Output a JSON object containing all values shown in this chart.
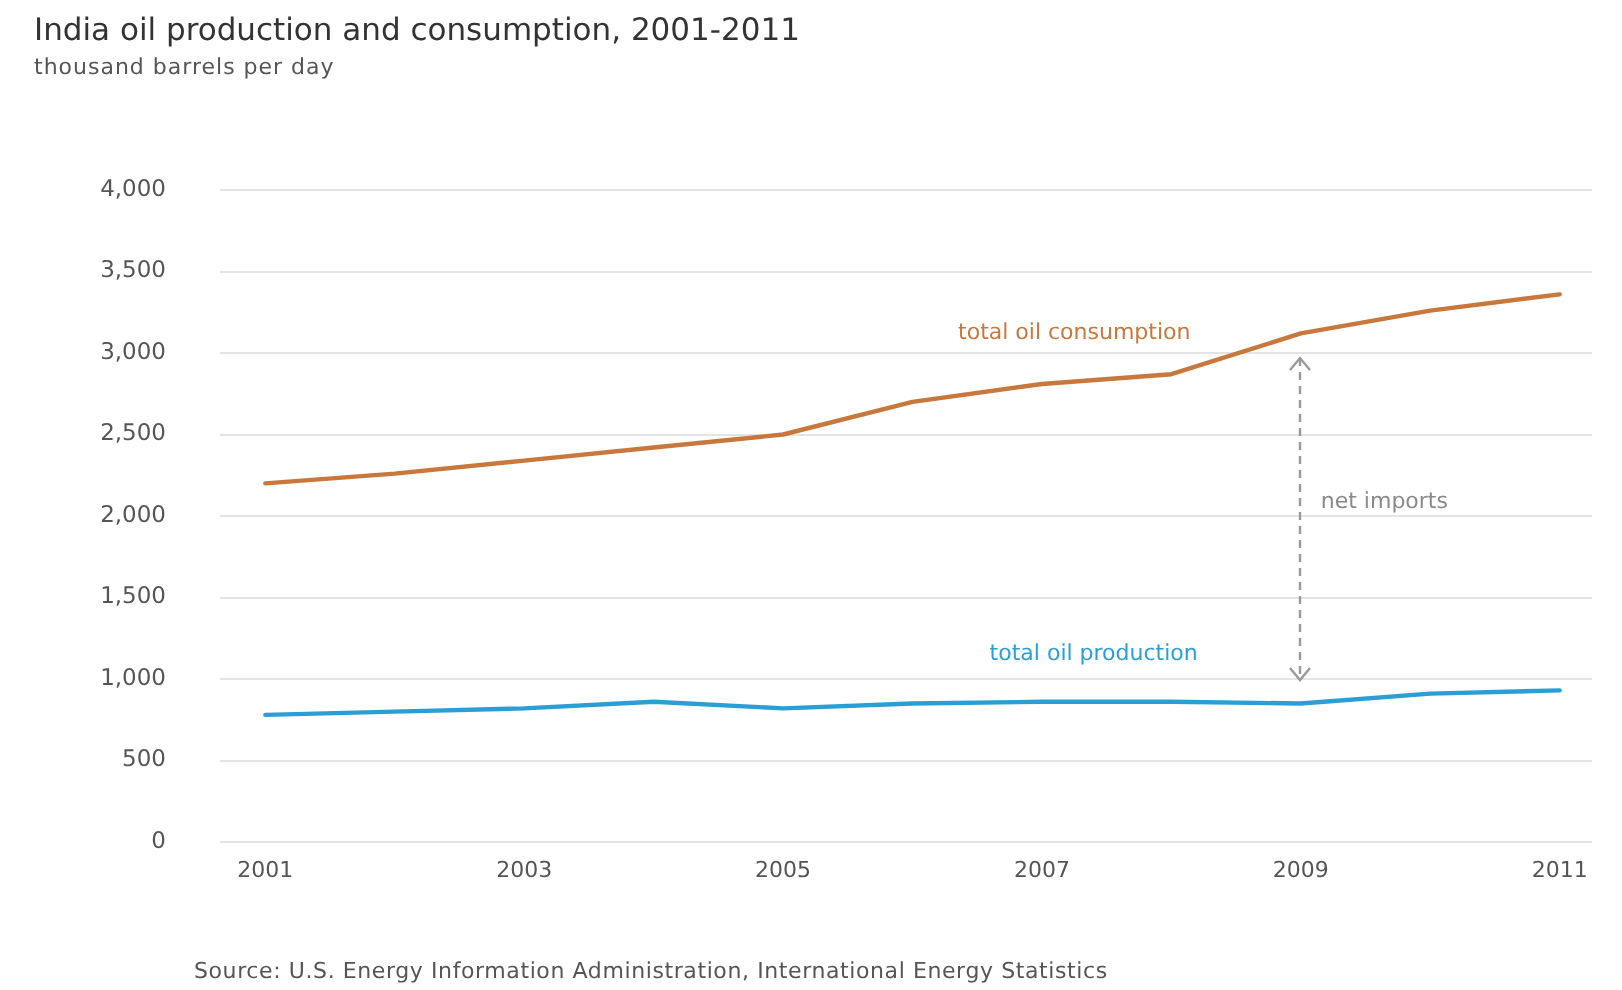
{
  "chart_data": {
    "type": "line",
    "title": "India oil production and consumption, 2001-2011",
    "subtitle": "thousand barrels per day",
    "x": [
      2001,
      2002,
      2003,
      2004,
      2005,
      2006,
      2007,
      2008,
      2009,
      2010,
      2011
    ],
    "xlim": [
      2000.65,
      2011.25
    ],
    "xticks": [
      2001,
      2003,
      2005,
      2007,
      2009,
      2011
    ],
    "ylim": [
      0,
      4000
    ],
    "yticks": [
      0,
      500,
      {
        "value": 1000,
        "label": "1,000"
      },
      {
        "value": 1500,
        "label": "1,500"
      },
      {
        "value": 2000,
        "label": "2,000"
      },
      {
        "value": 2500,
        "label": "2,500"
      },
      {
        "value": 3000,
        "label": "3,000"
      },
      {
        "value": 3500,
        "label": "3,500"
      },
      {
        "value": 4000,
        "label": "4,000"
      }
    ],
    "grid": "y",
    "series": [
      {
        "name": "total oil consumption",
        "color": "#c8783c",
        "values": [
          2200,
          2260,
          2340,
          2420,
          2500,
          2700,
          2810,
          2870,
          3120,
          3260,
          3360
        ]
      },
      {
        "name": "total oil production",
        "color": "#2a9fd6",
        "values": [
          780,
          800,
          820,
          860,
          820,
          850,
          860,
          860,
          850,
          910,
          930
        ]
      }
    ],
    "annotations": [
      "net imports",
      "Source: U.S. Energy Information Administration, International Energy Statistics"
    ]
  }
}
